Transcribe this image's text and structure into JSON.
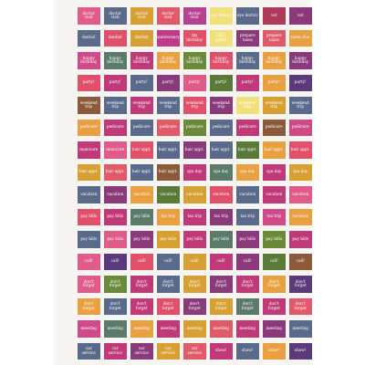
{
  "rows": [
    {
      "label": "doctor visit",
      "colors": [
        "#e05a8a",
        "#5a6a8a",
        "#d8a032",
        "#e05a6a",
        "#b84090",
        "#f2e07a",
        "#5a6a8a",
        "#b03a5a",
        "#8a3a7a"
      ]
    },
    {
      "label": "dentist / anniversary / birthday / games",
      "cells": [
        {
          "text": "dentist",
          "color": "#5a6a8a"
        },
        {
          "text": "dentist",
          "color": "#e0506a"
        },
        {
          "text": "dentist",
          "color": "#d8a032"
        },
        {
          "text": "anniversary",
          "color": "#c03a8a"
        },
        {
          "text": "my birthday",
          "color": "#e0506a"
        },
        {
          "text": "2011 game",
          "color": "#f2e07a"
        },
        {
          "text": "prepare taxes",
          "color": "#8a3a7a"
        },
        {
          "text": "prepare taxes",
          "color": "#e05a6a"
        },
        {
          "text": "taxes due",
          "color": "#e8a040"
        }
      ]
    },
    {
      "label": "happy birthday",
      "colors": [
        "#d04a8a",
        "#5a7a6a",
        "#c03a7a",
        "#e8a040",
        "#6a8a3a",
        "#e0506a",
        "#5a6a8a",
        "#e8a040",
        "#8a3a7a"
      ]
    },
    {
      "label": "party!",
      "colors": [
        "#e0506a",
        "#c03a7a",
        "#5a6a8a",
        "#8a3a7a",
        "#e05a8a",
        "#5a7a3a",
        "#c03a7a",
        "#e8a040",
        "#5a3a7a"
      ]
    },
    {
      "label": "weekend trip",
      "colors": [
        "#8a5a3a",
        "#5a6a8a",
        "#c03a7a",
        "#5a6a8a",
        "#e0506a",
        "#8a3a7a",
        "#f2e07a",
        "#d8a032",
        "#5a6a8a"
      ]
    },
    {
      "label": "pedicure",
      "colors": [
        "#e8a040",
        "#c03a7a",
        "#5a6a8a",
        "#e05a6a",
        "#6a8a3a",
        "#5a6a8a",
        "#c03a7a",
        "#8a5a3a",
        "#d04a8a"
      ]
    },
    {
      "label": "manicure / hair appt.",
      "cells": [
        {
          "text": "manicure",
          "color": "#c03a7a"
        },
        {
          "text": "manicure",
          "color": "#e05a8a"
        },
        {
          "text": "hair appt.",
          "color": "#e0506a"
        },
        {
          "text": "hair appt.",
          "color": "#5a6a8a"
        },
        {
          "text": "hair appt.",
          "color": "#8a3a7a"
        },
        {
          "text": "hair appt.",
          "color": "#5a6a8a"
        },
        {
          "text": "hair appt.",
          "color": "#5a7a3a"
        },
        {
          "text": "hair appt.",
          "color": "#e8a040"
        },
        {
          "text": "hair appt.",
          "color": "#e0506a"
        }
      ]
    },
    {
      "label": "hair appt. / spa day",
      "cells": [
        {
          "text": "hair appt.",
          "color": "#d8a032"
        },
        {
          "text": "hair appt.",
          "color": "#e05a6a"
        },
        {
          "text": "hair appt.",
          "color": "#5a6a8a"
        },
        {
          "text": "hair appt.",
          "color": "#8a5a3a"
        },
        {
          "text": "spa day",
          "color": "#c03a7a"
        },
        {
          "text": "spa day",
          "color": "#5a7a6a"
        },
        {
          "text": "spa day",
          "color": "#e8a040"
        },
        {
          "text": "spa day",
          "color": "#c03a7a"
        },
        {
          "text": "spa day",
          "color": "#d8a032"
        }
      ]
    },
    {
      "label": "vacation",
      "colors": [
        "#5a6a8a",
        "#8a3a7a",
        "#e8a040",
        "#5a7a3a",
        "#d8a032",
        "#e0506a",
        "#5a6a8a",
        "#c03a7a",
        "#e05a8a"
      ]
    },
    {
      "label": "pay bills / tax trip",
      "cells": [
        {
          "text": "pay bills",
          "color": "#e0506a"
        },
        {
          "text": "pay bills",
          "color": "#c03a7a"
        },
        {
          "text": "pay bills",
          "color": "#5a7a6a"
        },
        {
          "text": "tax trip",
          "color": "#e8a040"
        },
        {
          "text": "tax trip",
          "color": "#c03a7a"
        },
        {
          "text": "tax trip",
          "color": "#8a3a7a"
        },
        {
          "text": "tax trip",
          "color": "#5a6a8a"
        },
        {
          "text": "tax trip",
          "color": "#d04a8a"
        },
        {
          "text": "vacation",
          "color": "#e8a040"
        }
      ]
    },
    {
      "label": "pay bills",
      "colors": [
        "#5a6a8a",
        "#e05a8a",
        "#8a3a7a",
        "#d8a032",
        "#c03a7a",
        "#5a7a6a",
        "#8a3a7a",
        "#6a8a3a",
        "#c03a7a"
      ]
    },
    {
      "label": "call!",
      "colors": [
        "#e05a8a",
        "#5a3a7a",
        "#e0506a",
        "#5a6a8a",
        "#d8a032",
        "#c03a7a",
        "#8a3a7a",
        "#5a7a3a",
        "#8a5a3a"
      ]
    },
    {
      "label": "don't forget",
      "colors": [
        "#e05a8a",
        "#6a8a3a",
        "#c03a7a",
        "#5a6a8a",
        "#d8a032",
        "#8a3a7a",
        "#c03a7a",
        "#e8a040",
        "#5a3a7a"
      ]
    },
    {
      "label": "don't forget",
      "colors": [
        "#e8a040",
        "#5a6a8a",
        "#c03a7a",
        "#e0506a",
        "#8a3a7a",
        "#d8a032",
        "#5a7a6a",
        "#c03a7a",
        "#e05a6a"
      ]
    },
    {
      "label": "meeting",
      "colors": [
        "#d04a8a",
        "#5a7a6a",
        "#e8a040",
        "#c03a7a",
        "#d8a032",
        "#e05a6a",
        "#c03a7a",
        "#8a3a7a",
        "#5a6a8a"
      ]
    },
    {
      "label": "car service / show!",
      "cells": [
        {
          "text": "car service",
          "color": "#5a6a8a"
        },
        {
          "text": "car service",
          "color": "#c03a7a"
        },
        {
          "text": "car service",
          "color": "#8a3a7a"
        },
        {
          "text": "car service",
          "color": "#d8a032"
        },
        {
          "text": "car service",
          "color": "#e05a6a"
        },
        {
          "text": "show!",
          "color": "#c03a7a"
        },
        {
          "text": "show!",
          "color": "#5a6a8a"
        },
        {
          "text": "show!",
          "color": "#e8a040"
        },
        {
          "text": "show!",
          "color": "#5a3a7a"
        }
      ]
    }
  ],
  "row0_texts": [
    "doctor visit",
    "doctor visit",
    "doctor visit",
    "doctor visit",
    "doctor visit",
    "eye doctor",
    "eye doctor",
    "vet",
    "vet"
  ],
  "plain_texts": {
    "2": [
      "happy birthday",
      "happy birthday",
      "happy birthday",
      "happy birthday",
      "happy birthday",
      "happy birthday",
      "happy birthday",
      "happy birthday",
      "happy birthday"
    ],
    "3": [
      "party!",
      "party!",
      "party!",
      "party!",
      "party!",
      "party!",
      "party!",
      "party!",
      "party!"
    ],
    "4": [
      "weekend trip",
      "weekend trip",
      "weekend trip",
      "weekend trip",
      "weekend trip",
      "weekend trip",
      "weekend trip",
      "weekend trip",
      "weekend trip"
    ],
    "5": [
      "pedicure",
      "pedicure",
      "pedicure",
      "pedicure",
      "pedicure",
      "pedicure",
      "pedicure",
      "pedicure",
      "pedicure"
    ],
    "8": [
      "vacation",
      "vacation",
      "vacation",
      "vacation",
      "vacation",
      "vacation",
      "vacation",
      "vacation",
      "vacation"
    ],
    "10": [
      "pay bills",
      "pay bills",
      "pay bills",
      "pay bills",
      "pay bills",
      "pay bills",
      "pay bills",
      "pay bills",
      "pay bills"
    ],
    "11": [
      "call!",
      "call!",
      "call!",
      "call!",
      "call!",
      "call!",
      "call!",
      "call!",
      "call!"
    ],
    "12": [
      "don't forget",
      "don't forget",
      "don't forget",
      "don't forget",
      "don't forget",
      "don't forget",
      "don't forget",
      "don't forget",
      "don't forget"
    ],
    "13": [
      "don't forget",
      "don't forget",
      "don't forget",
      "don't forget",
      "don't forget",
      "don't forget",
      "don't forget",
      "don't forget",
      "don't forget"
    ],
    "14": [
      "meeting",
      "meeting",
      "meeting",
      "meeting",
      "meeting",
      "meeting",
      "meeting",
      "meeting",
      "meeting"
    ]
  }
}
